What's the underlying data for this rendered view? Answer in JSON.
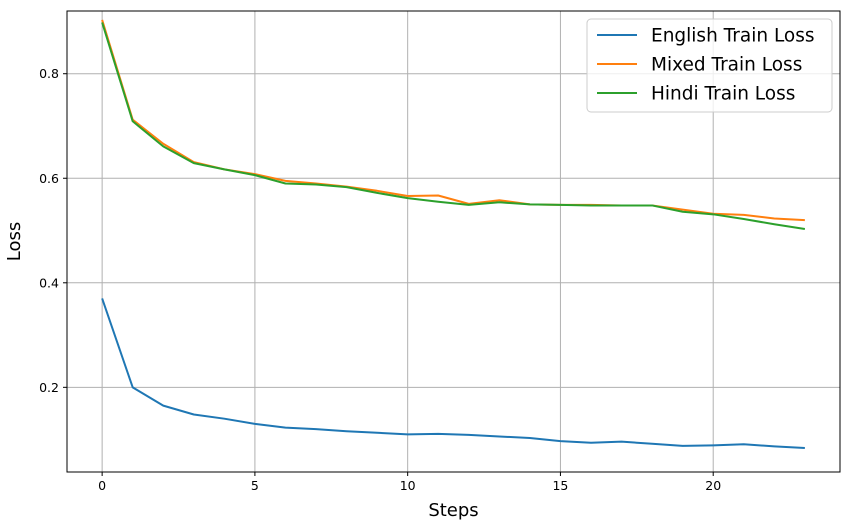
{
  "chart_data": {
    "type": "line",
    "title": "",
    "xlabel": "Steps",
    "ylabel": "Loss",
    "xlim": [
      -1.15,
      24.15
    ],
    "ylim": [
      0.038,
      0.92
    ],
    "x_ticks": [
      0,
      5,
      10,
      15,
      20
    ],
    "y_ticks": [
      0.2,
      0.4,
      0.6,
      0.8
    ],
    "grid": true,
    "legend_position": "top-right",
    "x": [
      0,
      1,
      2,
      3,
      4,
      5,
      6,
      7,
      8,
      9,
      10,
      11,
      12,
      13,
      14,
      15,
      16,
      17,
      18,
      19,
      20,
      21,
      22,
      23
    ],
    "series": [
      {
        "name": "English Train Loss",
        "color": "#1f77b4",
        "values": [
          0.37,
          0.2,
          0.165,
          0.148,
          0.14,
          0.13,
          0.123,
          0.12,
          0.116,
          0.113,
          0.11,
          0.111,
          0.109,
          0.106,
          0.103,
          0.097,
          0.094,
          0.096,
          0.092,
          0.088,
          0.089,
          0.091,
          0.087,
          0.084
        ]
      },
      {
        "name": "Mixed Train Loss",
        "color": "#ff7f0e",
        "values": [
          0.903,
          0.712,
          0.666,
          0.631,
          0.617,
          0.608,
          0.595,
          0.59,
          0.584,
          0.576,
          0.566,
          0.567,
          0.551,
          0.558,
          0.55,
          0.549,
          0.549,
          0.548,
          0.548,
          0.54,
          0.532,
          0.53,
          0.523,
          0.52
        ]
      },
      {
        "name": "Hindi Train Loss",
        "color": "#2ca02c",
        "values": [
          0.898,
          0.709,
          0.661,
          0.629,
          0.617,
          0.606,
          0.59,
          0.588,
          0.583,
          0.572,
          0.562,
          0.555,
          0.549,
          0.554,
          0.55,
          0.549,
          0.548,
          0.548,
          0.548,
          0.536,
          0.531,
          0.522,
          0.512,
          0.503
        ]
      }
    ]
  }
}
